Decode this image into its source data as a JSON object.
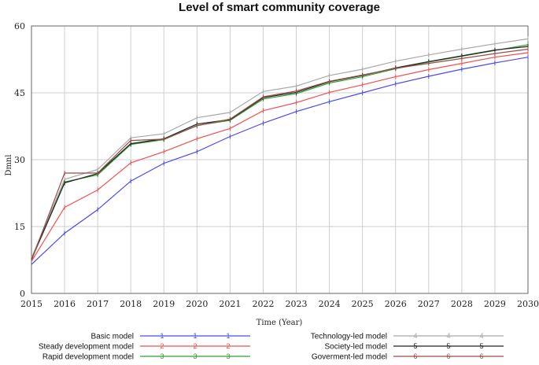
{
  "chart_data": {
    "type": "line",
    "title": "Level of smart community coverage",
    "xlabel": "Time (Year)",
    "ylabel": "Dmnl",
    "x": [
      2015,
      2016,
      2017,
      2018,
      2019,
      2020,
      2021,
      2022,
      2023,
      2024,
      2025,
      2026,
      2027,
      2028,
      2029,
      2030
    ],
    "xlim": [
      2015,
      2030
    ],
    "ylim": [
      0,
      60
    ],
    "yticks": [
      0,
      15,
      30,
      45,
      60
    ],
    "grid": true,
    "legend_position": "bottom",
    "series": [
      {
        "name": "Basic model",
        "marker": "1",
        "color": "#4a4af0",
        "values": [
          6.5,
          13.5,
          18.8,
          25.2,
          29.2,
          31.8,
          35.2,
          38.2,
          40.8,
          43.0,
          45.0,
          47.0,
          48.7,
          50.3,
          51.7,
          53.0
        ]
      },
      {
        "name": "Steady development model",
        "marker": "2",
        "color": "#f05050",
        "values": [
          7.2,
          19.3,
          23.2,
          29.3,
          31.8,
          34.7,
          37.0,
          41.0,
          42.8,
          45.1,
          46.8,
          48.6,
          50.2,
          51.6,
          53.0,
          54.0
        ]
      },
      {
        "name": "Rapid development model",
        "marker": "3",
        "color": "#2ea02e",
        "values": [
          7.8,
          25.0,
          26.6,
          33.4,
          34.5,
          37.7,
          38.8,
          43.6,
          44.8,
          47.2,
          48.6,
          50.4,
          51.9,
          53.2,
          54.5,
          55.8
        ]
      },
      {
        "name": "Technology-led model",
        "marker": "4",
        "color": "#a9a9a9",
        "values": [
          8.0,
          25.6,
          27.8,
          34.9,
          35.8,
          39.4,
          40.6,
          45.3,
          46.5,
          48.9,
          50.3,
          52.1,
          53.5,
          54.8,
          56.0,
          57.1
        ]
      },
      {
        "name": "Society-led model",
        "marker": "5",
        "color": "#222222",
        "values": [
          7.6,
          24.8,
          26.9,
          33.6,
          34.7,
          38.0,
          39.0,
          43.9,
          45.1,
          47.5,
          48.9,
          50.6,
          52.0,
          53.3,
          54.6,
          55.4
        ]
      },
      {
        "name": "Goverment-led model",
        "marker": "6",
        "color": "#9a4a4a",
        "values": [
          7.4,
          27.0,
          27.0,
          34.3,
          34.6,
          37.6,
          39.1,
          44.1,
          45.4,
          47.6,
          49.0,
          50.5,
          51.6,
          52.7,
          53.8,
          54.8
        ]
      }
    ]
  }
}
